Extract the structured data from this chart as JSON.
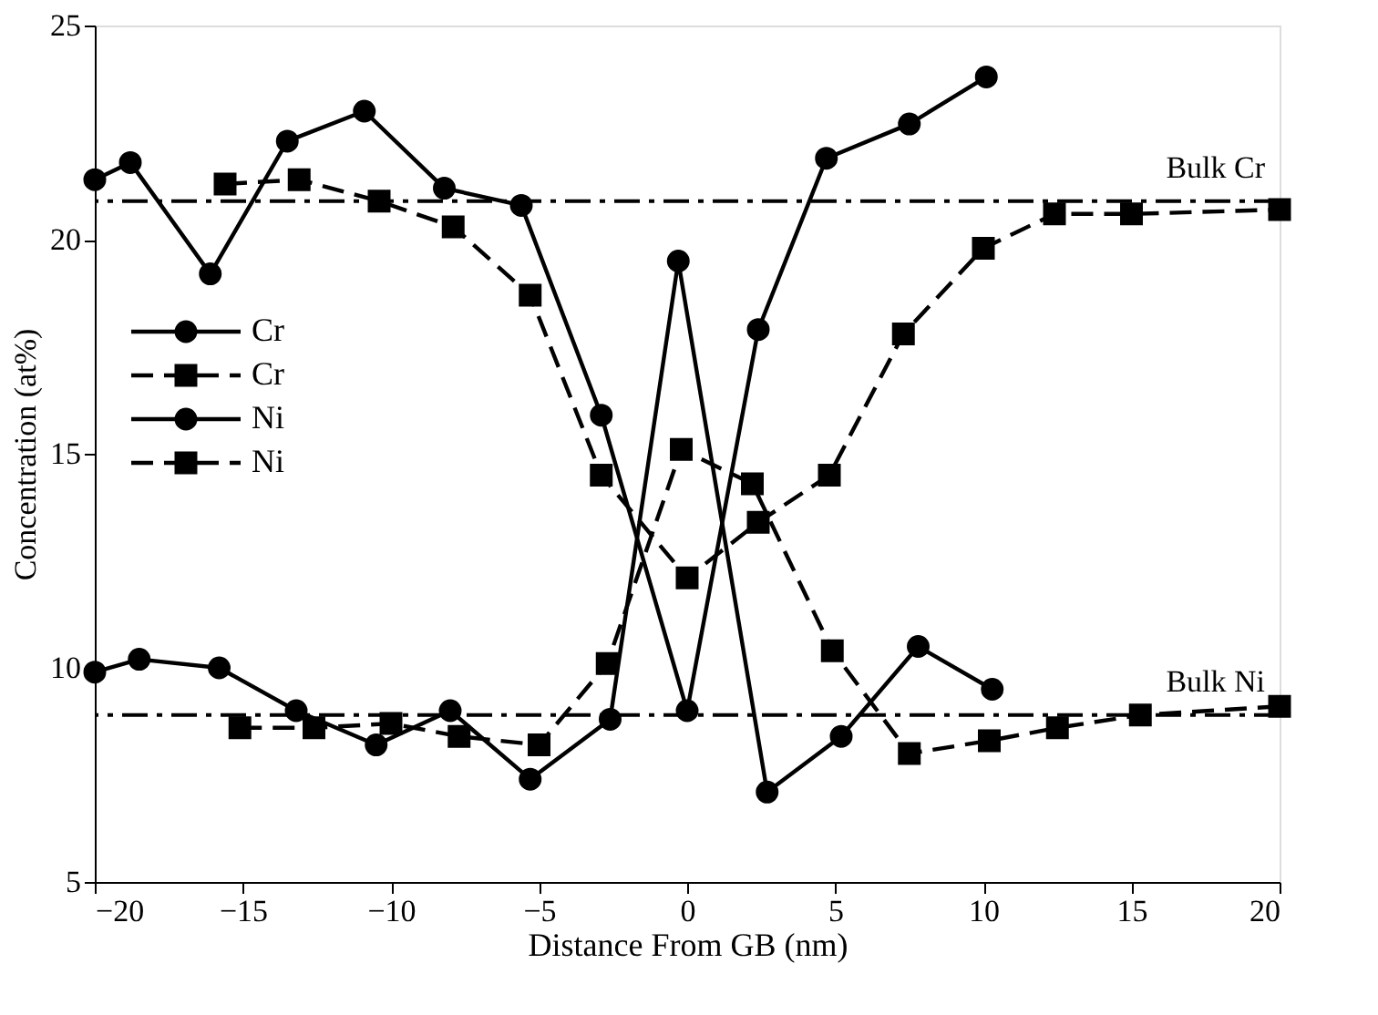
{
  "chart_data": {
    "type": "line",
    "xlabel": "Distance From GB (nm)",
    "ylabel": "Concentration (at%)",
    "xlim": [
      -20,
      20
    ],
    "xticks": [
      -20,
      -15,
      -10,
      -5,
      0,
      5,
      10,
      15,
      20
    ],
    "ylim": [
      5,
      25
    ],
    "yticks": [
      5,
      10,
      15,
      20,
      25
    ],
    "grid": false,
    "legend": "left",
    "series": [
      {
        "name": "Cr",
        "color": "#000000",
        "marker": "circle",
        "line_style": "solid",
        "x": [
          -20,
          -18.8,
          -16.1,
          -13.5,
          -10.9,
          -8.2,
          -5.6,
          -2.9,
          0,
          2.4,
          4.7,
          7.5,
          10.1
        ],
        "values": [
          21.4,
          21.8,
          19.2,
          22.3,
          23.0,
          21.2,
          20.8,
          15.9,
          9.0,
          17.9,
          21.9,
          22.7,
          23.8
        ]
      },
      {
        "name": "Cr",
        "color": "#000000",
        "marker": "square",
        "line_style": "dashed",
        "x": [
          -15.6,
          -13.1,
          -10.4,
          -7.9,
          -5.3,
          -2.9,
          0,
          2.4,
          4.8,
          7.3,
          10.0,
          12.4,
          15.0,
          20
        ],
        "values": [
          21.3,
          21.4,
          20.9,
          20.3,
          18.7,
          14.5,
          12.1,
          13.4,
          14.5,
          17.8,
          19.8,
          20.6,
          20.6,
          20.7
        ]
      },
      {
        "name": "Ni",
        "color": "#000000",
        "marker": "circle",
        "line_style": "solid",
        "x": [
          -20,
          -18.5,
          -15.8,
          -13.2,
          -10.5,
          -8.0,
          -5.3,
          -2.6,
          -0.3,
          2.7,
          5.2,
          7.8,
          10.3
        ],
        "values": [
          9.9,
          10.2,
          10.0,
          9.0,
          8.2,
          9.0,
          7.4,
          8.8,
          19.5,
          7.1,
          8.4,
          10.5,
          9.5
        ]
      },
      {
        "name": "Ni",
        "color": "#000000",
        "marker": "square",
        "line_style": "dashed",
        "x": [
          -15.1,
          -12.6,
          -10.0,
          -7.7,
          -5.0,
          -2.7,
          -0.2,
          2.2,
          4.9,
          7.5,
          10.2,
          12.5,
          15.3,
          20
        ],
        "values": [
          8.6,
          8.6,
          8.7,
          8.4,
          8.2,
          10.1,
          15.1,
          14.3,
          10.4,
          8.0,
          8.3,
          8.6,
          8.9,
          9.1
        ]
      }
    ],
    "ref_lines": [
      {
        "axis": "y",
        "value": 20.9,
        "label": "Bulk Cr",
        "line_style": "dashed"
      },
      {
        "axis": "y",
        "value": 8.9,
        "label": "Bulk Ni",
        "line_style": "dashed"
      }
    ]
  }
}
